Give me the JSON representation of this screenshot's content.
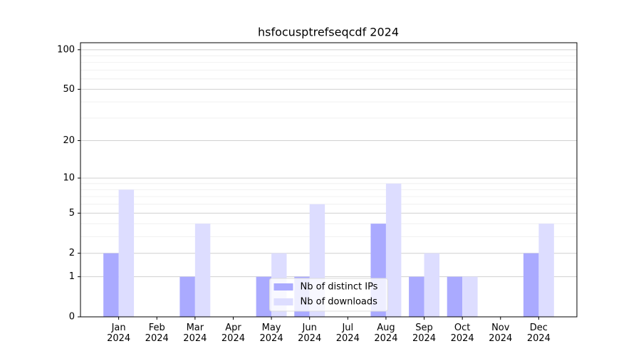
{
  "chart_data": {
    "type": "bar",
    "title": "hsfocusptrefseqcdf 2024",
    "categories": [
      "Jan\n2024",
      "Feb\n2024",
      "Mar\n2024",
      "Apr\n2024",
      "May\n2024",
      "Jun\n2024",
      "Jul\n2024",
      "Aug\n2024",
      "Sep\n2024",
      "Oct\n2024",
      "Nov\n2024",
      "Dec\n2024"
    ],
    "series": [
      {
        "name": "Nb of distinct IPs",
        "color": "#aaaaff",
        "values": [
          2,
          0,
          1,
          0,
          1,
          1,
          0,
          4,
          1,
          1,
          0,
          2
        ]
      },
      {
        "name": "Nb of downloads",
        "color": "#ddddff",
        "values": [
          8,
          0,
          4,
          0,
          2,
          6,
          0,
          9,
          2,
          1,
          0,
          4
        ]
      }
    ],
    "yscale": "log1p",
    "ylim": [
      0,
      113
    ],
    "yticks": [
      0,
      1,
      2,
      5,
      10,
      20,
      50,
      100
    ],
    "minor_yticks": [
      3,
      4,
      6,
      7,
      8,
      9,
      30,
      40,
      60,
      70,
      80,
      90
    ],
    "grid": true,
    "legend": "lower center"
  }
}
